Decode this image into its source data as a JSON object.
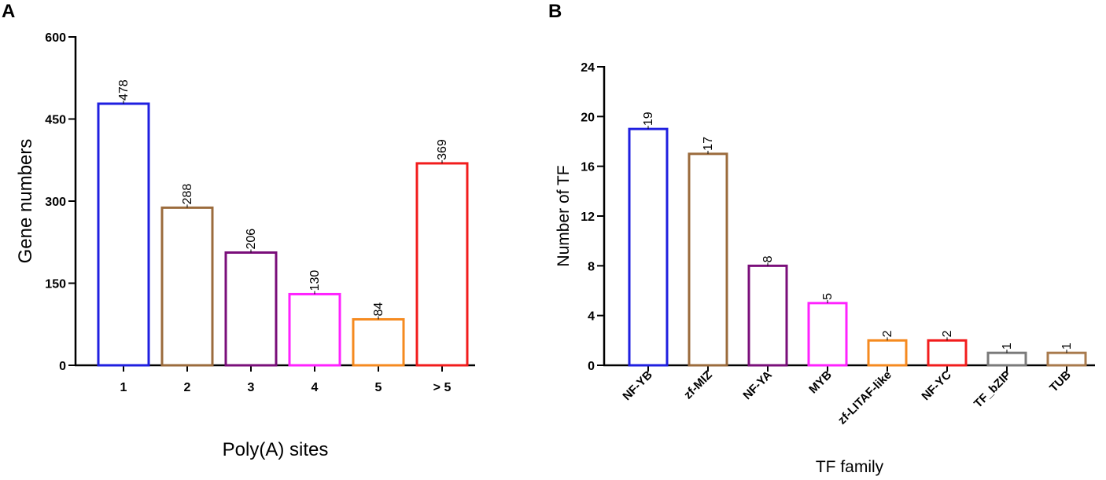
{
  "chart_data": [
    {
      "panel": "A",
      "type": "bar",
      "title": "",
      "xlabel": "Poly(A) sites",
      "ylabel": "Gene numbers",
      "categories": [
        "1",
        "2",
        "3",
        "4",
        "5",
        "> 5"
      ],
      "values": [
        478,
        288,
        206,
        130,
        84,
        369
      ],
      "data_labels": [
        "478",
        "288",
        "206",
        "130",
        "84",
        "369"
      ],
      "colors": [
        "#1f1fe0",
        "#9b6b3c",
        "#7a0e7a",
        "#ff22ff",
        "#f58a1f",
        "#f21c1c"
      ],
      "ylim": [
        0,
        600
      ],
      "yticks": [
        "0",
        "150",
        "300",
        "450",
        "600"
      ],
      "grid": false,
      "bar_style": "outlined"
    },
    {
      "panel": "B",
      "type": "bar",
      "title": "",
      "xlabel": "TF family",
      "ylabel": "Number of TF",
      "categories": [
        "NF-YB",
        "zf-MIZ",
        "NF-YA",
        "MYB",
        "zf-LITAF-like",
        "NF-YC",
        "TF_bZIP",
        "TUB"
      ],
      "values": [
        19,
        17,
        8,
        5,
        2,
        2,
        1,
        1
      ],
      "data_labels": [
        "19",
        "17",
        "8",
        "5",
        "2",
        "2",
        "1",
        "1"
      ],
      "colors": [
        "#1f1fe0",
        "#9b6b3c",
        "#7a0e7a",
        "#ff22ff",
        "#f58a1f",
        "#f21c1c",
        "#7a7a7a",
        "#a87a4c"
      ],
      "ylim": [
        0,
        24
      ],
      "yticks": [
        "0",
        "4",
        "8",
        "12",
        "16",
        "20",
        "24"
      ],
      "grid": false,
      "bar_style": "outlined"
    }
  ]
}
